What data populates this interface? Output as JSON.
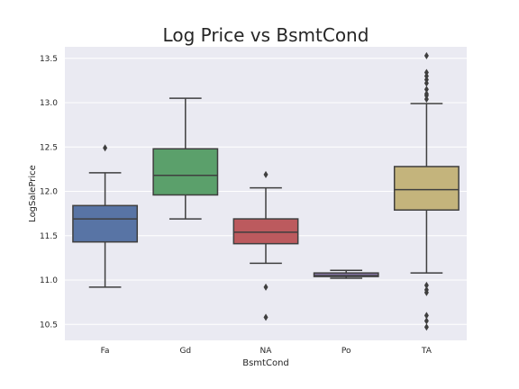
{
  "chart_data": {
    "type": "box",
    "title": "Log Price vs BsmtCond",
    "xlabel": "BsmtCond",
    "ylabel": "LogSalePrice",
    "ylim": [
      10.32,
      13.63
    ],
    "yticks": [
      "10.5",
      "11.0",
      "11.5",
      "12.0",
      "12.5",
      "13.0",
      "13.5"
    ],
    "grid": true,
    "categories": [
      "Fa",
      "Gd",
      "NA",
      "Po",
      "TA"
    ],
    "colors": [
      "#5874a5",
      "#5ba06b",
      "#bc5a5e",
      "#8574a2",
      "#c4b47c"
    ],
    "boxes": [
      {
        "category": "Fa",
        "q1": 11.43,
        "median": 11.69,
        "q3": 11.84,
        "whisker_low": 10.92,
        "whisker_high": 12.21,
        "outliers": [
          12.49
        ]
      },
      {
        "category": "Gd",
        "q1": 11.96,
        "median": 12.18,
        "q3": 12.48,
        "whisker_low": 11.69,
        "whisker_high": 13.05,
        "outliers": []
      },
      {
        "category": "NA",
        "q1": 11.41,
        "median": 11.54,
        "q3": 11.69,
        "whisker_low": 11.19,
        "whisker_high": 12.04,
        "outliers": [
          12.19,
          10.92,
          10.58
        ]
      },
      {
        "category": "Po",
        "q1": 11.04,
        "median": 11.05,
        "q3": 11.08,
        "whisker_low": 11.02,
        "whisker_high": 11.11,
        "outliers": []
      },
      {
        "category": "TA",
        "q1": 11.79,
        "median": 12.02,
        "q3": 12.28,
        "whisker_low": 11.08,
        "whisker_high": 12.99,
        "outliers": [
          13.53,
          13.34,
          13.3,
          13.26,
          13.22,
          13.15,
          13.1,
          13.08,
          13.04,
          10.94,
          10.89,
          10.86,
          10.6,
          10.54,
          10.47
        ]
      }
    ]
  }
}
